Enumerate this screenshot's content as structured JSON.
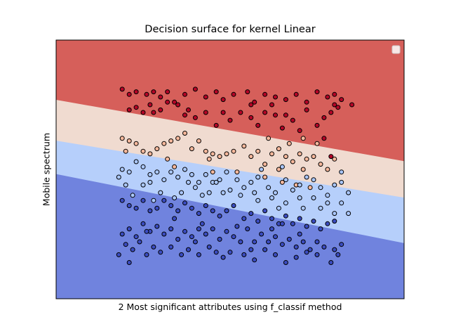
{
  "chart_data": {
    "type": "scatter",
    "title": "Decision surface for kernel Linear",
    "xlabel": "2 Most significant attributes using f_classif method",
    "ylabel": "Mobile spectrum",
    "xticks": false,
    "yticks": false,
    "grid": false,
    "legend": {
      "placement": "top-right",
      "entries": []
    },
    "xlim": [
      0,
      100
    ],
    "ylim": [
      0,
      100
    ],
    "classes": [
      {
        "id": 0,
        "color": "#3b4cc0"
      },
      {
        "id": 1,
        "color": "#aac7fd"
      },
      {
        "id": 2,
        "color": "#f7b89c"
      },
      {
        "id": 3,
        "color": "#b40426"
      }
    ],
    "regions": [
      {
        "class": 3,
        "color": "#d65f5a",
        "boundary_below": {
          "x": [
            0,
            100
          ],
          "y": [
            76.9,
            53.2
          ]
        }
      },
      {
        "class": 2,
        "color": "#f0dbd0",
        "boundary_below": {
          "x": [
            0,
            100
          ],
          "y": [
            61.1,
            39.1
          ]
        }
      },
      {
        "class": 1,
        "color": "#b6cffb",
        "boundary_below": {
          "x": [
            0,
            100
          ],
          "y": [
            48.2,
            21.5
          ]
        }
      },
      {
        "class": 0,
        "color": "#7083de"
      }
    ],
    "series": [
      {
        "class": 3,
        "points": [
          [
            19,
            81
          ],
          [
            21,
            79
          ],
          [
            23,
            80
          ],
          [
            26,
            79
          ],
          [
            28,
            80
          ],
          [
            30,
            78
          ],
          [
            32,
            80
          ],
          [
            34,
            76
          ],
          [
            37,
            79
          ],
          [
            40,
            81
          ],
          [
            43,
            78
          ],
          [
            46,
            80
          ],
          [
            48,
            77
          ],
          [
            51,
            79
          ],
          [
            55,
            80
          ],
          [
            57,
            76
          ],
          [
            60,
            79
          ],
          [
            63,
            78
          ],
          [
            66,
            77
          ],
          [
            69,
            79
          ],
          [
            72,
            76
          ],
          [
            75,
            80
          ],
          [
            78,
            78
          ],
          [
            80,
            75
          ],
          [
            82,
            77
          ],
          [
            85,
            75
          ],
          [
            80,
            79
          ],
          [
            77,
            70
          ],
          [
            75,
            67
          ],
          [
            70,
            65
          ],
          [
            66,
            71
          ],
          [
            63,
            71
          ],
          [
            60,
            72
          ],
          [
            58,
            67
          ],
          [
            56,
            70
          ],
          [
            53,
            72
          ],
          [
            50,
            69
          ],
          [
            48,
            72
          ],
          [
            46,
            67
          ],
          [
            43,
            72
          ],
          [
            40,
            70
          ],
          [
            38,
            73
          ],
          [
            35,
            75
          ],
          [
            32,
            76
          ],
          [
            30,
            73
          ],
          [
            27,
            75
          ],
          [
            25,
            72
          ],
          [
            23,
            74
          ],
          [
            21,
            73
          ],
          [
            28,
            72
          ],
          [
            37,
            71
          ],
          [
            56,
            75
          ],
          [
            62,
            75
          ],
          [
            79,
            72
          ],
          [
            81,
            74
          ],
          [
            72,
            73
          ],
          [
            68,
            69
          ],
          [
            65,
            66
          ],
          [
            77,
            62
          ],
          [
            79,
            55
          ]
        ]
      },
      {
        "class": 2,
        "points": [
          [
            19,
            62
          ],
          [
            21,
            61
          ],
          [
            23,
            60
          ],
          [
            25,
            57
          ],
          [
            27,
            56
          ],
          [
            29,
            58
          ],
          [
            31,
            60
          ],
          [
            33,
            61
          ],
          [
            35,
            62
          ],
          [
            37,
            64
          ],
          [
            39,
            58
          ],
          [
            41,
            61
          ],
          [
            43,
            57
          ],
          [
            45,
            56
          ],
          [
            47,
            55
          ],
          [
            49,
            56
          ],
          [
            51,
            57
          ],
          [
            54,
            59
          ],
          [
            56,
            55
          ],
          [
            58,
            57
          ],
          [
            60,
            52
          ],
          [
            62,
            56
          ],
          [
            64,
            58
          ],
          [
            66,
            55
          ],
          [
            68,
            53
          ],
          [
            70,
            56
          ],
          [
            72,
            54
          ],
          [
            74,
            55
          ],
          [
            76,
            52
          ],
          [
            78,
            50
          ],
          [
            80,
            54
          ],
          [
            60,
            47
          ],
          [
            65,
            45
          ],
          [
            69,
            44
          ],
          [
            73,
            43
          ],
          [
            61,
            62
          ],
          [
            71,
            62
          ],
          [
            75,
            60
          ],
          [
            64,
            50
          ],
          [
            34,
            51
          ],
          [
            45,
            49
          ],
          [
            52,
            49
          ],
          [
            20,
            57
          ],
          [
            32,
            54
          ],
          [
            44,
            54
          ],
          [
            67,
            60
          ],
          [
            71,
            50
          ]
        ]
      },
      {
        "class": 1,
        "points": [
          [
            19,
            50
          ],
          [
            21,
            49
          ],
          [
            23,
            53
          ],
          [
            25,
            51
          ],
          [
            27,
            48
          ],
          [
            29,
            49
          ],
          [
            31,
            46
          ],
          [
            33,
            49
          ],
          [
            35,
            47
          ],
          [
            37,
            50
          ],
          [
            39,
            48
          ],
          [
            41,
            45
          ],
          [
            43,
            48
          ],
          [
            45,
            45
          ],
          [
            47,
            46
          ],
          [
            49,
            49
          ],
          [
            52,
            46
          ],
          [
            54,
            43
          ],
          [
            56,
            45
          ],
          [
            58,
            47
          ],
          [
            61,
            43
          ],
          [
            63,
            41
          ],
          [
            66,
            46
          ],
          [
            68,
            42
          ],
          [
            70,
            44
          ],
          [
            72,
            47
          ],
          [
            74,
            46
          ],
          [
            76,
            43
          ],
          [
            78,
            40
          ],
          [
            80,
            44
          ],
          [
            82,
            45
          ],
          [
            84,
            41
          ],
          [
            82,
            37
          ],
          [
            78,
            37
          ],
          [
            74,
            39
          ],
          [
            70,
            39
          ],
          [
            66,
            37
          ],
          [
            62,
            39
          ],
          [
            57,
            41
          ],
          [
            53,
            40
          ],
          [
            48,
            41
          ],
          [
            44,
            41
          ],
          [
            40,
            43
          ],
          [
            36,
            41
          ],
          [
            30,
            41
          ],
          [
            25,
            44
          ],
          [
            20,
            44
          ],
          [
            18,
            47
          ],
          [
            22,
            40
          ],
          [
            28,
            38
          ],
          [
            34,
            39
          ],
          [
            42,
            40
          ],
          [
            50,
            42
          ],
          [
            58,
            38
          ],
          [
            64,
            35
          ],
          [
            71,
            35
          ],
          [
            76,
            35
          ],
          [
            80,
            33
          ],
          [
            84,
            33
          ],
          [
            46,
            45
          ],
          [
            59,
            50
          ],
          [
            38,
            45
          ],
          [
            27,
            45
          ],
          [
            65,
            51
          ],
          [
            82,
            49
          ]
        ]
      },
      {
        "class": 0,
        "points": [
          [
            19,
            38
          ],
          [
            21,
            36
          ],
          [
            23,
            35
          ],
          [
            25,
            38
          ],
          [
            27,
            34
          ],
          [
            29,
            35
          ],
          [
            31,
            38
          ],
          [
            33,
            36
          ],
          [
            35,
            34
          ],
          [
            37,
            37
          ],
          [
            39,
            35
          ],
          [
            41,
            33
          ],
          [
            43,
            36
          ],
          [
            45,
            34
          ],
          [
            47,
            32
          ],
          [
            49,
            34
          ],
          [
            51,
            36
          ],
          [
            54,
            31
          ],
          [
            56,
            33
          ],
          [
            58,
            30
          ],
          [
            60,
            34
          ],
          [
            62,
            31
          ],
          [
            64,
            29
          ],
          [
            66,
            32
          ],
          [
            68,
            29
          ],
          [
            70,
            31
          ],
          [
            72,
            28
          ],
          [
            74,
            30
          ],
          [
            76,
            27
          ],
          [
            78,
            29
          ],
          [
            80,
            30
          ],
          [
            19,
            25
          ],
          [
            21,
            27
          ],
          [
            23,
            24
          ],
          [
            25,
            29
          ],
          [
            27,
            26
          ],
          [
            29,
            28
          ],
          [
            31,
            25
          ],
          [
            33,
            27
          ],
          [
            35,
            23
          ],
          [
            37,
            26
          ],
          [
            39,
            24
          ],
          [
            41,
            27
          ],
          [
            43,
            25
          ],
          [
            45,
            27
          ],
          [
            47,
            23
          ],
          [
            49,
            26
          ],
          [
            51,
            24
          ],
          [
            53,
            22
          ],
          [
            55,
            27
          ],
          [
            57,
            22
          ],
          [
            59,
            25
          ],
          [
            61,
            22
          ],
          [
            63,
            24
          ],
          [
            65,
            21
          ],
          [
            67,
            23
          ],
          [
            69,
            20
          ],
          [
            71,
            22
          ],
          [
            73,
            19
          ],
          [
            75,
            22
          ],
          [
            77,
            20
          ],
          [
            80,
            19
          ],
          [
            20,
            21
          ],
          [
            22,
            19
          ],
          [
            24,
            22
          ],
          [
            26,
            17
          ],
          [
            28,
            20
          ],
          [
            30,
            18
          ],
          [
            33,
            20
          ],
          [
            36,
            17
          ],
          [
            38,
            19
          ],
          [
            41,
            17
          ],
          [
            44,
            20
          ],
          [
            46,
            18
          ],
          [
            48,
            16
          ],
          [
            50,
            18
          ],
          [
            54,
            17
          ],
          [
            57,
            15
          ],
          [
            60,
            19
          ],
          [
            63,
            17
          ],
          [
            66,
            14
          ],
          [
            69,
            16
          ],
          [
            72,
            18
          ],
          [
            75,
            17
          ],
          [
            79,
            14
          ],
          [
            81,
            17
          ],
          [
            18,
            17
          ],
          [
            21,
            14
          ],
          [
            26,
            26
          ],
          [
            34,
            31
          ],
          [
            42,
            29
          ],
          [
            52,
            28
          ],
          [
            62,
            27
          ],
          [
            70,
            25
          ],
          [
            40,
            22
          ],
          [
            56,
            19
          ],
          [
            82,
            21
          ],
          [
            65,
            29
          ]
        ]
      }
    ]
  }
}
